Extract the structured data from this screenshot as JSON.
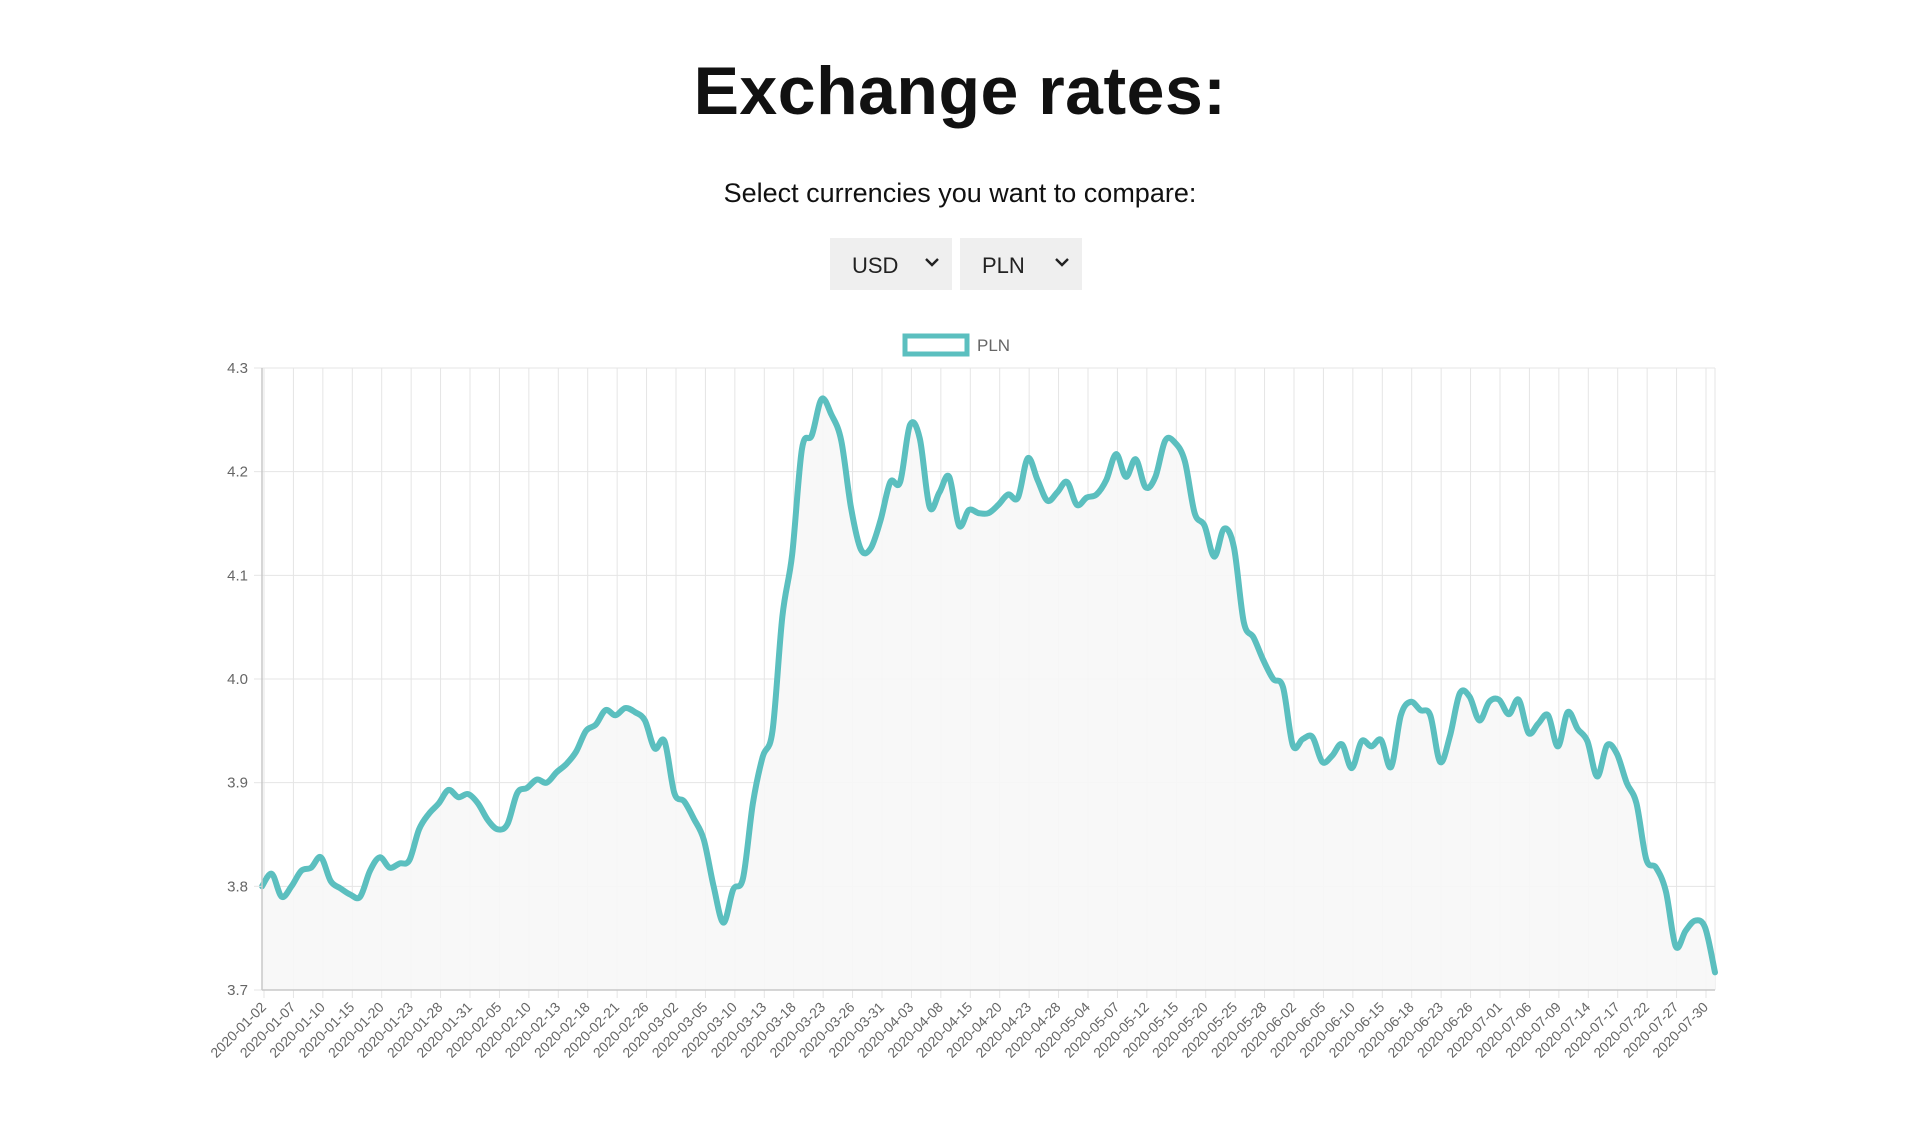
{
  "header": {
    "title": "Exchange rates:",
    "subtitle": "Select currencies you want to compare:"
  },
  "selects": {
    "from": {
      "value": "USD"
    },
    "to": {
      "value": "PLN"
    }
  },
  "colors": {
    "line": "#5bbfbf",
    "fill": "#f7f7f7",
    "grid": "#e5e5e5"
  },
  "chart_data": {
    "type": "line",
    "title": "",
    "xlabel": "",
    "ylabel": "",
    "ylim": [
      3.7,
      4.3
    ],
    "yticks": [
      "4.3",
      "4.2",
      "4.1",
      "4.0",
      "3.9",
      "3.8",
      "3.7"
    ],
    "grid": true,
    "legend_position": "top-center",
    "xtick_labels": [
      "2020-01-02",
      "2020-01-07",
      "2020-01-10",
      "2020-01-15",
      "2020-01-20",
      "2020-01-23",
      "2020-01-28",
      "2020-01-31",
      "2020-02-05",
      "2020-02-10",
      "2020-02-13",
      "2020-02-18",
      "2020-02-21",
      "2020-02-26",
      "2020-03-02",
      "2020-03-05",
      "2020-03-10",
      "2020-03-13",
      "2020-03-18",
      "2020-03-23",
      "2020-03-26",
      "2020-03-31",
      "2020-04-03",
      "2020-04-08",
      "2020-04-15",
      "2020-04-20",
      "2020-04-23",
      "2020-04-28",
      "2020-05-04",
      "2020-05-07",
      "2020-05-12",
      "2020-05-15",
      "2020-05-20",
      "2020-05-25",
      "2020-05-28",
      "2020-06-02",
      "2020-06-05",
      "2020-06-10",
      "2020-06-15",
      "2020-06-18",
      "2020-06-23",
      "2020-06-26",
      "2020-07-01",
      "2020-07-06",
      "2020-07-09",
      "2020-07-14",
      "2020-07-17",
      "2020-07-22",
      "2020-07-27",
      "2020-07-30"
    ],
    "series": [
      {
        "name": "PLN",
        "values": [
          3.8,
          3.812,
          3.79,
          3.8,
          3.815,
          3.818,
          3.828,
          3.805,
          3.798,
          3.792,
          3.79,
          3.815,
          3.828,
          3.818,
          3.822,
          3.825,
          3.855,
          3.87,
          3.88,
          3.893,
          3.886,
          3.889,
          3.88,
          3.864,
          3.855,
          3.86,
          3.89,
          3.895,
          3.903,
          3.9,
          3.91,
          3.918,
          3.93,
          3.95,
          3.956,
          3.97,
          3.965,
          3.972,
          3.968,
          3.96,
          3.933,
          3.94,
          3.89,
          3.882,
          3.865,
          3.845,
          3.8,
          3.765,
          3.797,
          3.808,
          3.88,
          3.925,
          3.95,
          4.06,
          4.12,
          4.222,
          4.235,
          4.27,
          4.255,
          4.23,
          4.165,
          4.125,
          4.126,
          4.153,
          4.19,
          4.19,
          4.245,
          4.232,
          4.166,
          4.18,
          4.195,
          4.148,
          4.163,
          4.16,
          4.16,
          4.168,
          4.178,
          4.175,
          4.213,
          4.192,
          4.172,
          4.18,
          4.19,
          4.168,
          4.175,
          4.178,
          4.192,
          4.217,
          4.195,
          4.212,
          4.185,
          4.195,
          4.23,
          4.228,
          4.21,
          4.16,
          4.148,
          4.118,
          4.145,
          4.127,
          4.055,
          4.04,
          4.018,
          4.0,
          3.992,
          3.936,
          3.942,
          3.944,
          3.92,
          3.926,
          3.937,
          3.914,
          3.94,
          3.935,
          3.941,
          3.915,
          3.965,
          3.978,
          3.97,
          3.965,
          3.92,
          3.945,
          3.986,
          3.983,
          3.96,
          3.978,
          3.98,
          3.966,
          3.98,
          3.948,
          3.957,
          3.965,
          3.935,
          3.968,
          3.952,
          3.94,
          3.906,
          3.936,
          3.928,
          3.9,
          3.88,
          3.826,
          3.818,
          3.795,
          3.742,
          3.757,
          3.767,
          3.76,
          3.717
        ]
      }
    ]
  }
}
